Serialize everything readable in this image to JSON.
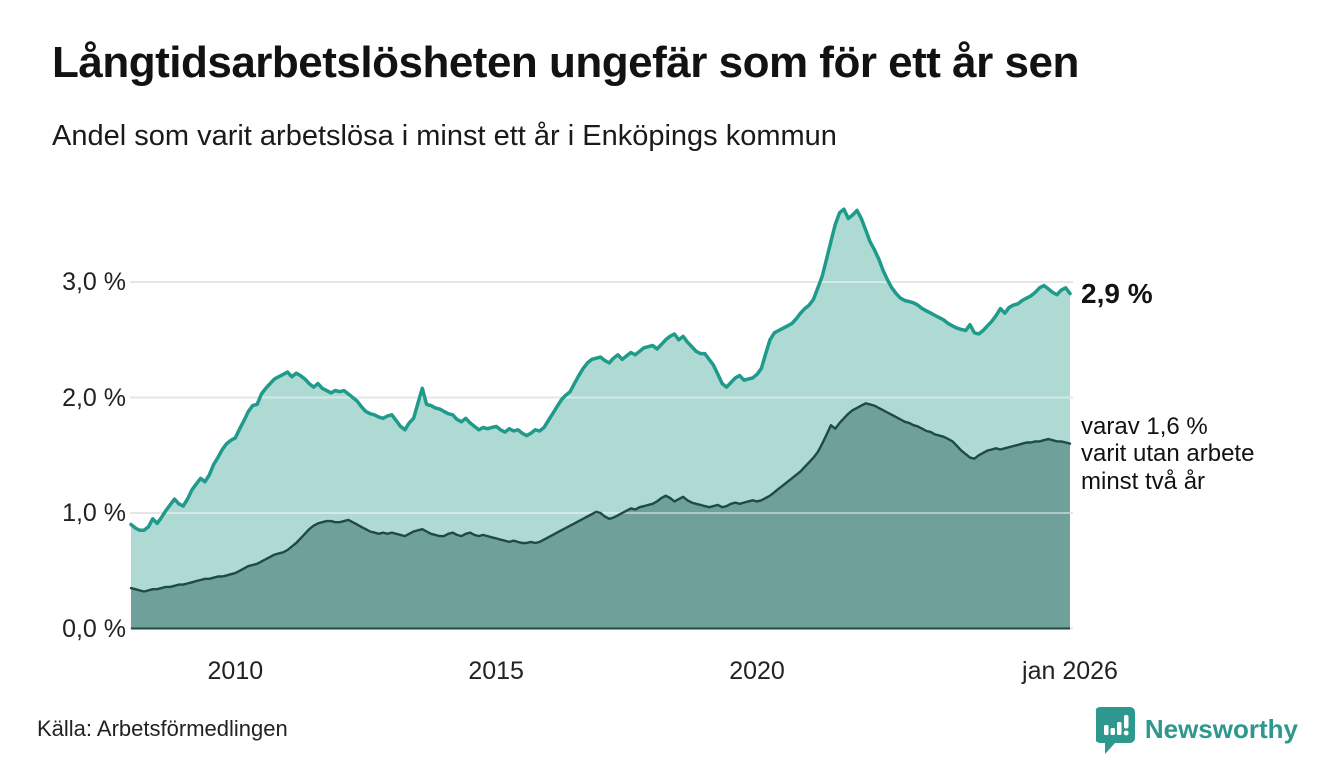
{
  "header": {
    "title": "Långtidsarbetslösheten ungefär som för ett år sen",
    "subtitle": "Andel som varit arbetslösa i minst ett år i Enköpings kommun"
  },
  "footer": {
    "source": "Källa: Arbetsförmedlingen",
    "brand": "Newsworthy"
  },
  "colors": {
    "line_total": "#1f9a8b",
    "fill_total": "#aedad3",
    "line_secondary": "#1e4b44",
    "fill_secondary": "#70a09a",
    "grid": "#d2d2d2",
    "grid_overlay": "rgba(255,255,255,0.45)",
    "baseline": "#1e4b44",
    "text": "#121212",
    "brand": "#2e978e"
  },
  "chart_data": {
    "type": "area",
    "title": "Långtidsarbetslösheten ungefär som för ett år sen",
    "subtitle": "Andel som varit arbetslösa i minst ett år i Enköpings kommun",
    "unit": "%",
    "frequency": "monthly",
    "x_start": "2008-01",
    "x_end": "2026-01",
    "ylim": [
      0,
      3.8
    ],
    "grid": true,
    "yticks": [
      {
        "value": 3.0,
        "label": "3,0 %"
      },
      {
        "value": 2.0,
        "label": "2,0 %"
      },
      {
        "value": 1.0,
        "label": "1,0 %"
      },
      {
        "value": 0.0,
        "label": "0,0 %"
      }
    ],
    "xticks": [
      {
        "year": 2010,
        "label": "2010"
      },
      {
        "year": 2015,
        "label": "2015"
      },
      {
        "year": 2020,
        "label": "2020"
      },
      {
        "year": 2026,
        "label": "jan 2026"
      }
    ],
    "end_labels": {
      "total": "2,9 %",
      "secondary_lines": [
        "varav 1,6 %",
        "varit utan arbete",
        "minst två år"
      ]
    },
    "series": [
      {
        "name": "Andel arbetslösa minst ett år",
        "end_value": 2.9,
        "values": [
          0.9,
          0.87,
          0.85,
          0.85,
          0.88,
          0.95,
          0.91,
          0.96,
          1.02,
          1.07,
          1.12,
          1.08,
          1.06,
          1.12,
          1.2,
          1.25,
          1.3,
          1.27,
          1.33,
          1.42,
          1.48,
          1.55,
          1.6,
          1.63,
          1.65,
          1.73,
          1.8,
          1.88,
          1.93,
          1.94,
          2.03,
          2.08,
          2.12,
          2.16,
          2.18,
          2.2,
          2.22,
          2.18,
          2.21,
          2.19,
          2.16,
          2.12,
          2.09,
          2.12,
          2.08,
          2.06,
          2.04,
          2.06,
          2.05,
          2.06,
          2.03,
          2.0,
          1.97,
          1.92,
          1.88,
          1.86,
          1.85,
          1.83,
          1.82,
          1.84,
          1.85,
          1.8,
          1.75,
          1.72,
          1.78,
          1.82,
          1.95,
          2.08,
          1.94,
          1.93,
          1.91,
          1.9,
          1.88,
          1.86,
          1.85,
          1.81,
          1.79,
          1.82,
          1.78,
          1.75,
          1.72,
          1.74,
          1.73,
          1.74,
          1.75,
          1.72,
          1.7,
          1.73,
          1.71,
          1.72,
          1.69,
          1.67,
          1.69,
          1.72,
          1.71,
          1.74,
          1.8,
          1.86,
          1.92,
          1.98,
          2.02,
          2.05,
          2.12,
          2.19,
          2.25,
          2.3,
          2.33,
          2.34,
          2.35,
          2.32,
          2.3,
          2.34,
          2.37,
          2.33,
          2.36,
          2.39,
          2.37,
          2.4,
          2.43,
          2.44,
          2.45,
          2.42,
          2.46,
          2.5,
          2.53,
          2.55,
          2.5,
          2.53,
          2.48,
          2.44,
          2.4,
          2.38,
          2.38,
          2.33,
          2.28,
          2.2,
          2.12,
          2.09,
          2.13,
          2.17,
          2.19,
          2.15,
          2.16,
          2.17,
          2.2,
          2.25,
          2.38,
          2.5,
          2.56,
          2.58,
          2.6,
          2.62,
          2.64,
          2.68,
          2.73,
          2.77,
          2.8,
          2.85,
          2.95,
          3.05,
          3.2,
          3.35,
          3.5,
          3.6,
          3.63,
          3.55,
          3.58,
          3.62,
          3.55,
          3.45,
          3.35,
          3.28,
          3.2,
          3.1,
          3.02,
          2.95,
          2.9,
          2.86,
          2.84,
          2.83,
          2.82,
          2.8,
          2.77,
          2.75,
          2.73,
          2.71,
          2.69,
          2.67,
          2.64,
          2.62,
          2.6,
          2.59,
          2.58,
          2.63,
          2.56,
          2.55,
          2.58,
          2.62,
          2.66,
          2.71,
          2.77,
          2.73,
          2.78,
          2.8,
          2.81,
          2.84,
          2.86,
          2.88,
          2.91,
          2.95,
          2.97,
          2.94,
          2.91,
          2.89,
          2.93,
          2.95,
          2.9
        ]
      },
      {
        "name": "varav utan arbete minst två år",
        "end_value": 1.6,
        "values": [
          0.35,
          0.34,
          0.33,
          0.32,
          0.33,
          0.34,
          0.34,
          0.35,
          0.36,
          0.36,
          0.37,
          0.38,
          0.38,
          0.39,
          0.4,
          0.41,
          0.42,
          0.43,
          0.43,
          0.44,
          0.45,
          0.45,
          0.46,
          0.47,
          0.48,
          0.5,
          0.52,
          0.54,
          0.55,
          0.56,
          0.58,
          0.6,
          0.62,
          0.64,
          0.65,
          0.66,
          0.68,
          0.71,
          0.74,
          0.78,
          0.82,
          0.86,
          0.89,
          0.91,
          0.92,
          0.93,
          0.93,
          0.92,
          0.92,
          0.93,
          0.94,
          0.92,
          0.9,
          0.88,
          0.86,
          0.84,
          0.83,
          0.82,
          0.83,
          0.82,
          0.83,
          0.82,
          0.81,
          0.8,
          0.82,
          0.84,
          0.85,
          0.86,
          0.84,
          0.82,
          0.81,
          0.8,
          0.8,
          0.82,
          0.83,
          0.81,
          0.8,
          0.82,
          0.83,
          0.81,
          0.8,
          0.81,
          0.8,
          0.79,
          0.78,
          0.77,
          0.76,
          0.75,
          0.76,
          0.75,
          0.74,
          0.74,
          0.75,
          0.74,
          0.75,
          0.77,
          0.79,
          0.81,
          0.83,
          0.85,
          0.87,
          0.89,
          0.91,
          0.93,
          0.95,
          0.97,
          0.99,
          1.01,
          1.0,
          0.97,
          0.95,
          0.96,
          0.98,
          1.0,
          1.02,
          1.04,
          1.03,
          1.05,
          1.06,
          1.07,
          1.08,
          1.1,
          1.13,
          1.15,
          1.13,
          1.1,
          1.12,
          1.14,
          1.11,
          1.09,
          1.08,
          1.07,
          1.06,
          1.05,
          1.06,
          1.07,
          1.05,
          1.06,
          1.08,
          1.09,
          1.08,
          1.09,
          1.1,
          1.11,
          1.1,
          1.11,
          1.13,
          1.15,
          1.18,
          1.21,
          1.24,
          1.27,
          1.3,
          1.33,
          1.36,
          1.4,
          1.44,
          1.48,
          1.53,
          1.6,
          1.68,
          1.76,
          1.73,
          1.78,
          1.82,
          1.86,
          1.89,
          1.91,
          1.93,
          1.95,
          1.94,
          1.93,
          1.91,
          1.89,
          1.87,
          1.85,
          1.83,
          1.81,
          1.79,
          1.78,
          1.76,
          1.75,
          1.73,
          1.71,
          1.7,
          1.68,
          1.67,
          1.66,
          1.64,
          1.62,
          1.58,
          1.54,
          1.51,
          1.48,
          1.47,
          1.5,
          1.52,
          1.54,
          1.55,
          1.56,
          1.55,
          1.56,
          1.57,
          1.58,
          1.59,
          1.6,
          1.61,
          1.61,
          1.62,
          1.62,
          1.63,
          1.64,
          1.63,
          1.62,
          1.62,
          1.61,
          1.6
        ]
      }
    ]
  }
}
